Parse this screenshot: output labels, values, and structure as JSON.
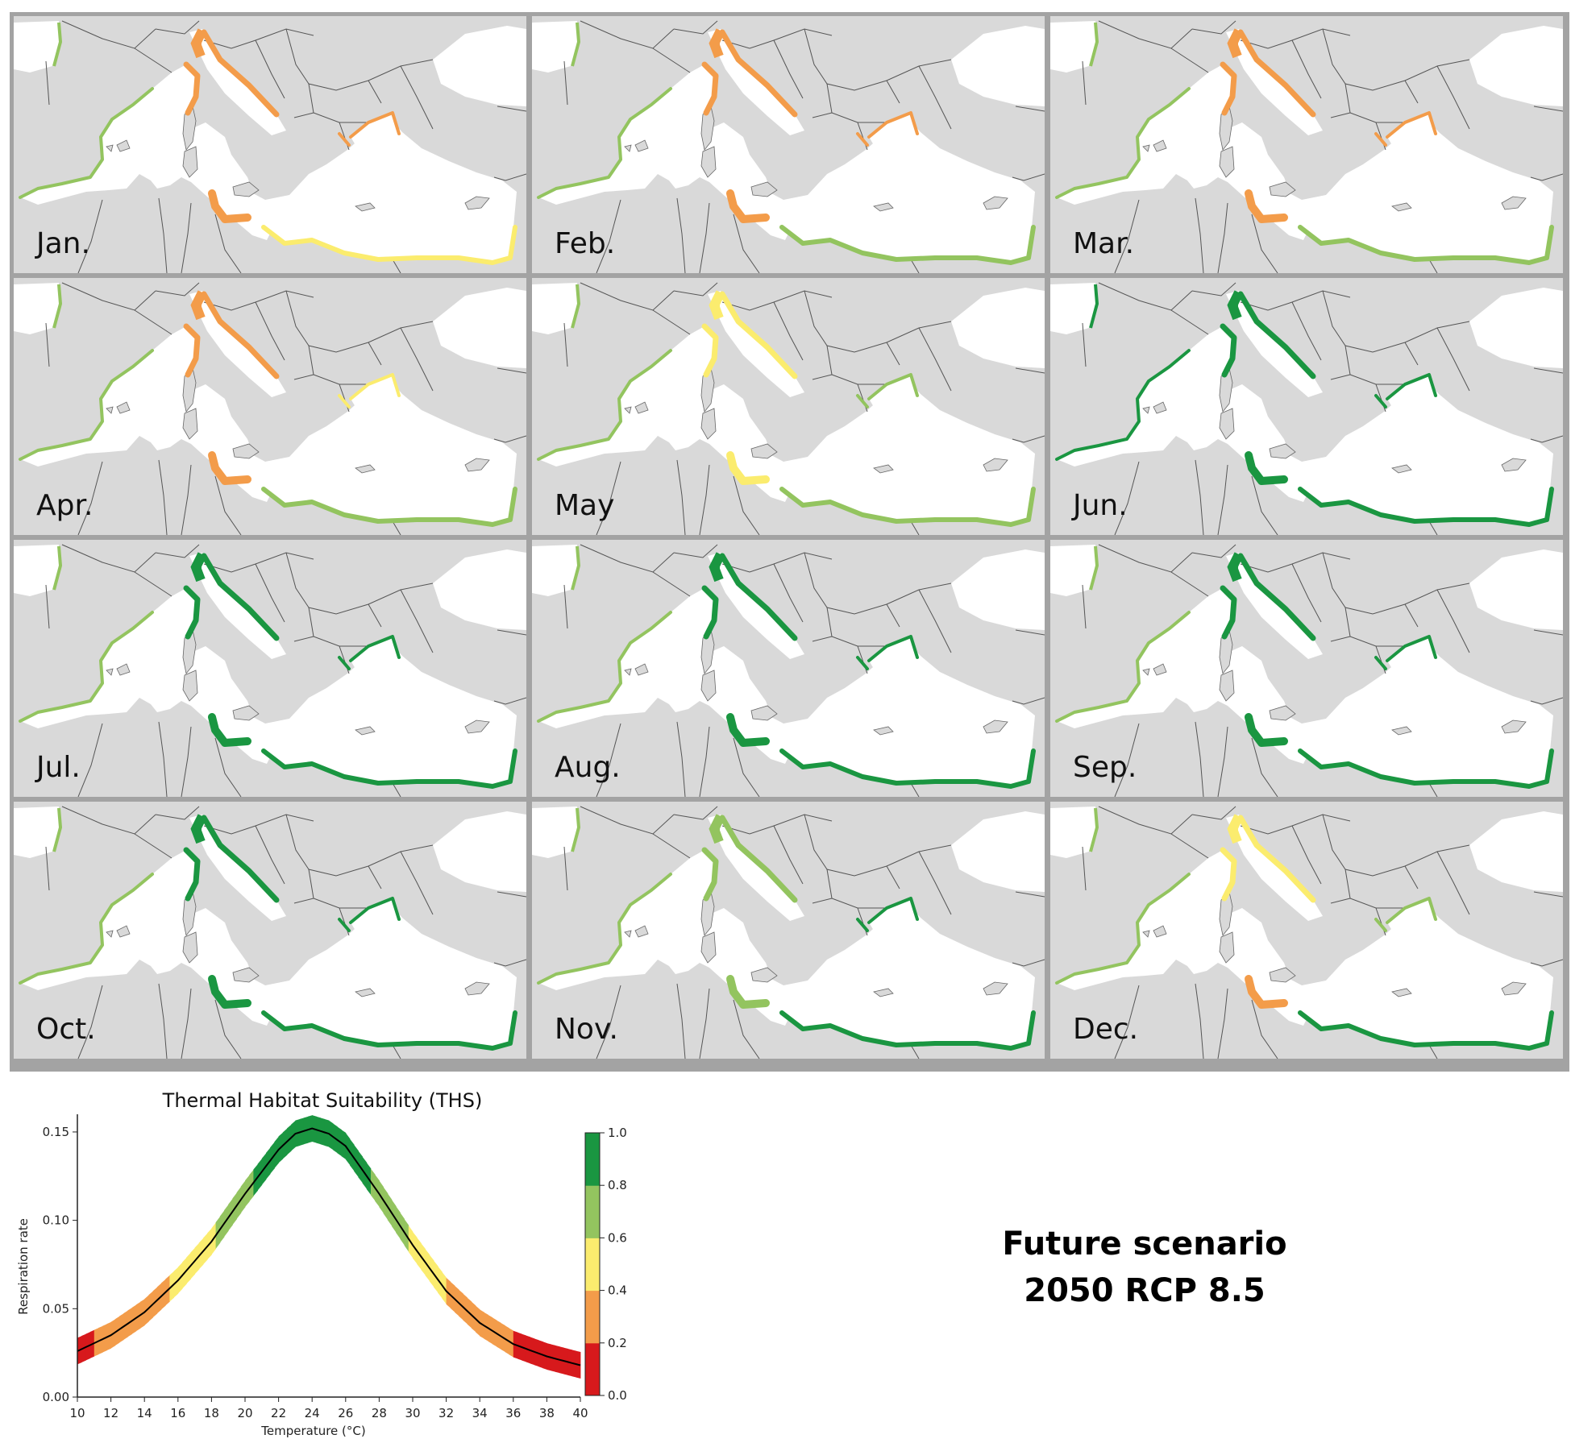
{
  "panels": [
    {
      "label": "Jan.",
      "suit": [
        0.6,
        0.35,
        0.2,
        0.3,
        0.55
      ]
    },
    {
      "label": "Feb.",
      "suit": [
        0.6,
        0.35,
        0.2,
        0.3,
        0.6
      ]
    },
    {
      "label": "Mar.",
      "suit": [
        0.6,
        0.35,
        0.25,
        0.35,
        0.65
      ]
    },
    {
      "label": "Apr.",
      "suit": [
        0.6,
        0.35,
        0.25,
        0.45,
        0.7
      ]
    },
    {
      "label": "May",
      "suit": [
        0.6,
        0.5,
        0.45,
        0.7,
        0.75
      ]
    },
    {
      "label": "Jun.",
      "suit": [
        0.9,
        0.85,
        0.9,
        0.9,
        0.95
      ]
    },
    {
      "label": "Jul.",
      "suit": [
        0.7,
        0.9,
        0.95,
        0.85,
        0.95
      ]
    },
    {
      "label": "Aug.",
      "suit": [
        0.7,
        0.9,
        0.95,
        0.8,
        0.95
      ]
    },
    {
      "label": "Sep.",
      "suit": [
        0.7,
        0.9,
        0.95,
        0.8,
        0.95
      ]
    },
    {
      "label": "Oct.",
      "suit": [
        0.65,
        0.85,
        0.9,
        0.9,
        0.95
      ]
    },
    {
      "label": "Nov.",
      "suit": [
        0.6,
        0.6,
        0.7,
        0.85,
        0.95
      ]
    },
    {
      "label": "Dec.",
      "suit": [
        0.6,
        0.4,
        0.3,
        0.7,
        0.9
      ]
    }
  ],
  "chart_data": {
    "type": "line",
    "title": "Thermal Habitat Suitability (THS)",
    "xlabel": "Temperature (°C)",
    "ylabel": "Respiration rate",
    "xlim": [
      10,
      40
    ],
    "ylim": [
      0,
      0.16
    ],
    "x_ticks": [
      "10",
      "12",
      "14",
      "16",
      "18",
      "20",
      "22",
      "24",
      "26",
      "28",
      "30",
      "32",
      "34",
      "36",
      "38",
      "40"
    ],
    "y_ticks": [
      "0.00",
      "0.05",
      "0.10",
      "0.15"
    ],
    "curve": {
      "x": [
        10,
        12,
        14,
        16,
        18,
        20,
        22,
        23,
        24,
        25,
        26,
        28,
        30,
        32,
        34,
        36,
        38,
        40
      ],
      "y": [
        0.026,
        0.035,
        0.048,
        0.066,
        0.088,
        0.115,
        0.14,
        0.149,
        0.152,
        0.149,
        0.142,
        0.115,
        0.086,
        0.06,
        0.042,
        0.03,
        0.023,
        0.018
      ]
    },
    "band_halfwidth": 0.0075,
    "colorbar": {
      "ticks": [
        "0.0",
        "0.2",
        "0.4",
        "0.6",
        "0.8",
        "1.0"
      ],
      "colors": [
        "#d7191c",
        "#f39c4a",
        "#fbec6e",
        "#93c45f",
        "#1a9641"
      ]
    }
  },
  "scenario": {
    "line1": "Future scenario",
    "line2": "2050 RCP 8.5"
  }
}
